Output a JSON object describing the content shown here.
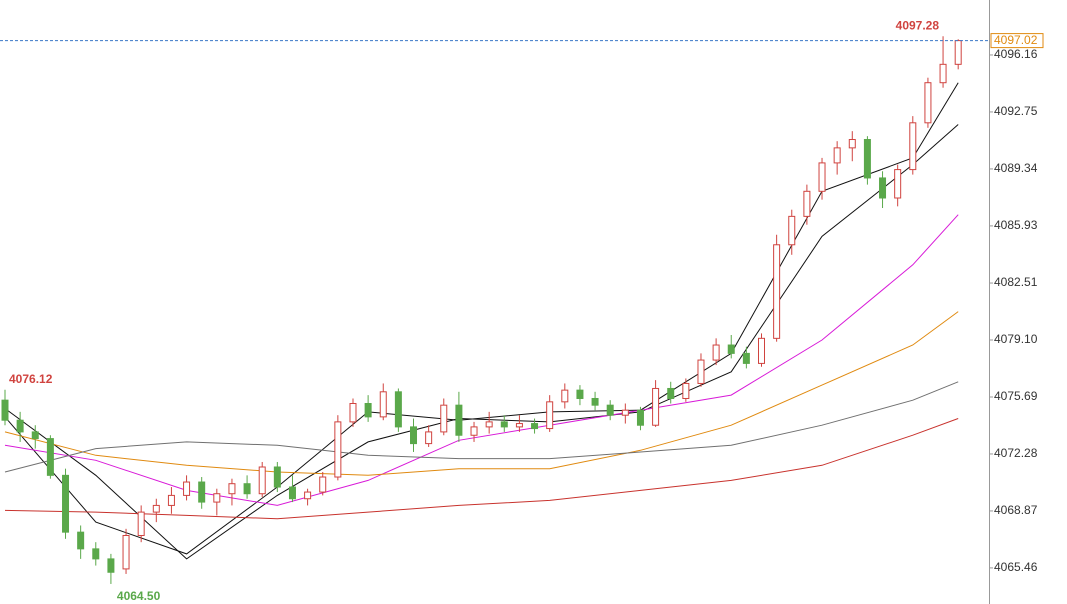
{
  "chart_data": {
    "type": "candlestick",
    "up_color": "#d0433f",
    "down_color": "#5aa84a",
    "ylim": [
      4063.3,
      4099.45
    ],
    "yticks": [
      4065.46,
      4068.87,
      4072.28,
      4075.69,
      {
        "value": 4079.1,
        "label": "4079.10"
      },
      4082.51,
      4085.93,
      4089.34,
      4092.75,
      4096.16
    ],
    "ohlc": [
      [
        4075.5,
        4076.12,
        4074.0,
        4074.3
      ],
      [
        4074.3,
        4074.8,
        4073.0,
        4073.6
      ],
      [
        4073.6,
        4074.0,
        4072.6,
        4073.2
      ],
      [
        4073.2,
        4073.4,
        4070.8,
        4071.0
      ],
      [
        4071.0,
        4071.4,
        4067.2,
        4067.6
      ],
      [
        4067.6,
        4068.0,
        4066.0,
        4066.6
      ],
      [
        4066.6,
        4067.0,
        4065.6,
        4066.0
      ],
      [
        4066.0,
        4066.3,
        4064.5,
        4065.2
      ],
      [
        4065.4,
        4067.8,
        4065.1,
        4067.4
      ],
      [
        4067.4,
        4069.2,
        4067.0,
        4068.8
      ],
      [
        4068.8,
        4069.6,
        4068.2,
        4069.2
      ],
      [
        4069.2,
        4070.3,
        4068.7,
        4069.8
      ],
      [
        4069.8,
        4071.0,
        4069.5,
        4070.6
      ],
      [
        4070.6,
        4070.9,
        4069.0,
        4069.4
      ],
      [
        4069.4,
        4070.2,
        4068.6,
        4069.9
      ],
      [
        4069.9,
        4070.8,
        4069.2,
        4070.5
      ],
      [
        4070.5,
        4071.0,
        4069.6,
        4069.9
      ],
      [
        4069.9,
        4071.8,
        4069.7,
        4071.5
      ],
      [
        4071.5,
        4071.8,
        4070.0,
        4070.3
      ],
      [
        4070.3,
        4071.0,
        4069.4,
        4069.6
      ],
      [
        4069.6,
        4070.2,
        4069.2,
        4070.0
      ],
      [
        4070.0,
        4071.2,
        4069.8,
        4070.9
      ],
      [
        4070.9,
        4074.6,
        4070.7,
        4074.2
      ],
      [
        4074.2,
        4075.6,
        4073.9,
        4075.3
      ],
      [
        4075.3,
        4075.8,
        4074.2,
        4074.5
      ],
      [
        4074.5,
        4076.5,
        4074.3,
        4076.0
      ],
      [
        4076.0,
        4076.2,
        4073.6,
        4073.9
      ],
      [
        4073.9,
        4074.4,
        4072.4,
        4072.9
      ],
      [
        4072.9,
        4074.0,
        4072.7,
        4073.6
      ],
      [
        4073.6,
        4075.6,
        4073.4,
        4075.2
      ],
      [
        4075.2,
        4076.0,
        4073.0,
        4073.4
      ],
      [
        4073.4,
        4074.2,
        4073.0,
        4073.9
      ],
      [
        4073.9,
        4074.8,
        4073.5,
        4074.2
      ],
      [
        4074.2,
        4074.6,
        4073.6,
        4073.9
      ],
      [
        4073.9,
        4074.6,
        4073.6,
        4074.1
      ],
      [
        4074.1,
        4074.4,
        4073.5,
        4073.8
      ],
      [
        4073.8,
        4075.8,
        4073.6,
        4075.4
      ],
      [
        4075.4,
        4076.5,
        4075.0,
        4076.1
      ],
      [
        4076.1,
        4076.4,
        4075.2,
        4075.6
      ],
      [
        4075.6,
        4076.0,
        4074.9,
        4075.2
      ],
      [
        4075.2,
        4075.5,
        4074.3,
        4074.6
      ],
      [
        4074.6,
        4075.3,
        4074.1,
        4074.9
      ],
      [
        4074.9,
        4075.1,
        4073.7,
        4074.0
      ],
      [
        4074.0,
        4076.7,
        4073.9,
        4076.2
      ],
      [
        4076.2,
        4076.6,
        4075.3,
        4075.6
      ],
      [
        4075.6,
        4076.8,
        4075.4,
        4076.5
      ],
      [
        4076.5,
        4078.3,
        4076.3,
        4077.9
      ],
      [
        4077.9,
        4079.2,
        4077.6,
        4078.8
      ],
      [
        4078.8,
        4079.4,
        4078.0,
        4078.3
      ],
      [
        4078.3,
        4078.7,
        4077.4,
        4077.7
      ],
      [
        4077.7,
        4079.5,
        4077.5,
        4079.2
      ],
      [
        4079.2,
        4085.4,
        4079.0,
        4084.8
      ],
      [
        4084.8,
        4086.9,
        4084.2,
        4086.5
      ],
      [
        4086.5,
        4088.4,
        4086.0,
        4088.0
      ],
      [
        4088.0,
        4090.0,
        4087.5,
        4089.7
      ],
      [
        4089.7,
        4091.0,
        4089.0,
        4090.6
      ],
      [
        4090.6,
        4091.6,
        4089.8,
        4091.1
      ],
      [
        4091.1,
        4091.3,
        4088.4,
        4088.8
      ],
      [
        4088.8,
        4089.2,
        4087.0,
        4087.6
      ],
      [
        4087.6,
        4089.6,
        4087.1,
        4089.3
      ],
      [
        4089.3,
        4092.5,
        4089.0,
        4092.1
      ],
      [
        4092.1,
        4094.8,
        4091.8,
        4094.5
      ],
      [
        4094.5,
        4097.28,
        4094.2,
        4095.6
      ],
      [
        4095.6,
        4097.1,
        4095.3,
        4097.02
      ]
    ],
    "lines": [
      {
        "color": "#111111",
        "x": [
          0,
          6,
          12,
          18,
          24,
          30,
          36,
          42,
          48,
          54,
          60,
          63
        ],
        "values": [
          4074.5,
          4068.2,
          4066.3,
          4070.3,
          4074.8,
          4074.3,
          4074.8,
          4074.9,
          4078.3,
          4088.0,
          4090.0,
          4094.5
        ]
      },
      {
        "color": "#111111",
        "x": [
          0,
          6,
          12,
          18,
          24,
          30,
          36,
          42,
          48,
          54,
          60,
          63
        ],
        "values": [
          4075.0,
          4071.0,
          4066.0,
          4069.8,
          4073.0,
          4074.4,
          4074.2,
          4074.8,
          4077.2,
          4085.3,
          4089.6,
          4092.0
        ]
      },
      {
        "color": "#d81ad8",
        "x": [
          0,
          6,
          12,
          18,
          24,
          30,
          36,
          42,
          48,
          54,
          60,
          63
        ],
        "values": [
          4072.8,
          4071.9,
          4070.1,
          4069.2,
          4070.7,
          4073.1,
          4074.0,
          4074.9,
          4075.8,
          4079.1,
          4083.6,
          4086.6
        ]
      },
      {
        "color": "#e08a10",
        "x": [
          0,
          6,
          12,
          18,
          24,
          30,
          36,
          42,
          48,
          54,
          60,
          63
        ],
        "values": [
          4073.6,
          4072.2,
          4071.6,
          4071.2,
          4071.0,
          4071.4,
          4071.4,
          4072.5,
          4074.0,
          4076.4,
          4078.8,
          4080.8
        ]
      },
      {
        "color": "#707070",
        "x": [
          0,
          6,
          12,
          18,
          24,
          30,
          36,
          42,
          48,
          54,
          60,
          63
        ],
        "values": [
          4071.2,
          4072.6,
          4073.0,
          4072.8,
          4072.2,
          4072.0,
          4072.0,
          4072.4,
          4072.8,
          4074.0,
          4075.5,
          4076.6
        ]
      },
      {
        "color": "#c8322d",
        "x": [
          0,
          6,
          12,
          18,
          24,
          30,
          36,
          42,
          48,
          54,
          60,
          63
        ],
        "values": [
          4068.9,
          4068.8,
          4068.6,
          4068.4,
          4068.8,
          4069.2,
          4069.5,
          4070.1,
          4070.7,
          4071.6,
          4073.4,
          4074.4
        ]
      }
    ],
    "annotations": [
      {
        "text": "4097.28",
        "x": 62,
        "y": 4097.28,
        "color": "#d0433f"
      },
      {
        "text": "4076.12",
        "x": 0,
        "y": 4076.12,
        "color": "#d0433f"
      },
      {
        "text": "4064.50",
        "x": 7,
        "y": 4064.5,
        "color": "#5aa84a"
      }
    ],
    "last_price": 4097.02
  }
}
